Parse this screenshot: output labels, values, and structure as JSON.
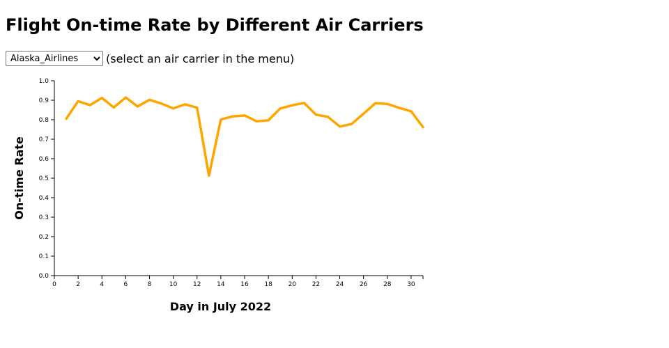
{
  "header": {
    "title": "Flight On-time Rate by Different Air Carriers"
  },
  "controls": {
    "selected_carrier": "Alaska_Airlines",
    "hint": "(select an air carrier in the menu)"
  },
  "chart_data": {
    "type": "line",
    "title": "Flight On-time Rate by Different Air Carriers",
    "xlabel": "Day in July 2022",
    "ylabel": "On-time Rate",
    "xlim": [
      0,
      31
    ],
    "ylim": [
      0,
      1.0
    ],
    "x_ticks": [
      0,
      2,
      4,
      6,
      8,
      10,
      12,
      14,
      16,
      18,
      20,
      22,
      24,
      26,
      28,
      30
    ],
    "y_ticks": [
      0.0,
      0.1,
      0.2,
      0.3,
      0.4,
      0.5,
      0.6,
      0.7,
      0.8,
      0.9,
      1.0
    ],
    "grid": false,
    "series": [
      {
        "color": "#FFA500",
        "x": [
          1,
          2,
          3,
          4,
          5,
          6,
          7,
          8,
          9,
          10,
          11,
          12,
          13,
          14,
          15,
          16,
          17,
          18,
          19,
          20,
          21,
          22,
          23,
          24,
          25,
          26,
          27,
          28,
          29,
          30,
          31
        ],
        "values": [
          0.805,
          0.895,
          0.875,
          0.912,
          0.863,
          0.914,
          0.868,
          0.902,
          0.883,
          0.858,
          0.879,
          0.862,
          0.513,
          0.801,
          0.817,
          0.822,
          0.792,
          0.797,
          0.858,
          0.874,
          0.886,
          0.826,
          0.815,
          0.765,
          0.778,
          0.831,
          0.885,
          0.881,
          0.861,
          0.843,
          0.762
        ]
      }
    ]
  }
}
